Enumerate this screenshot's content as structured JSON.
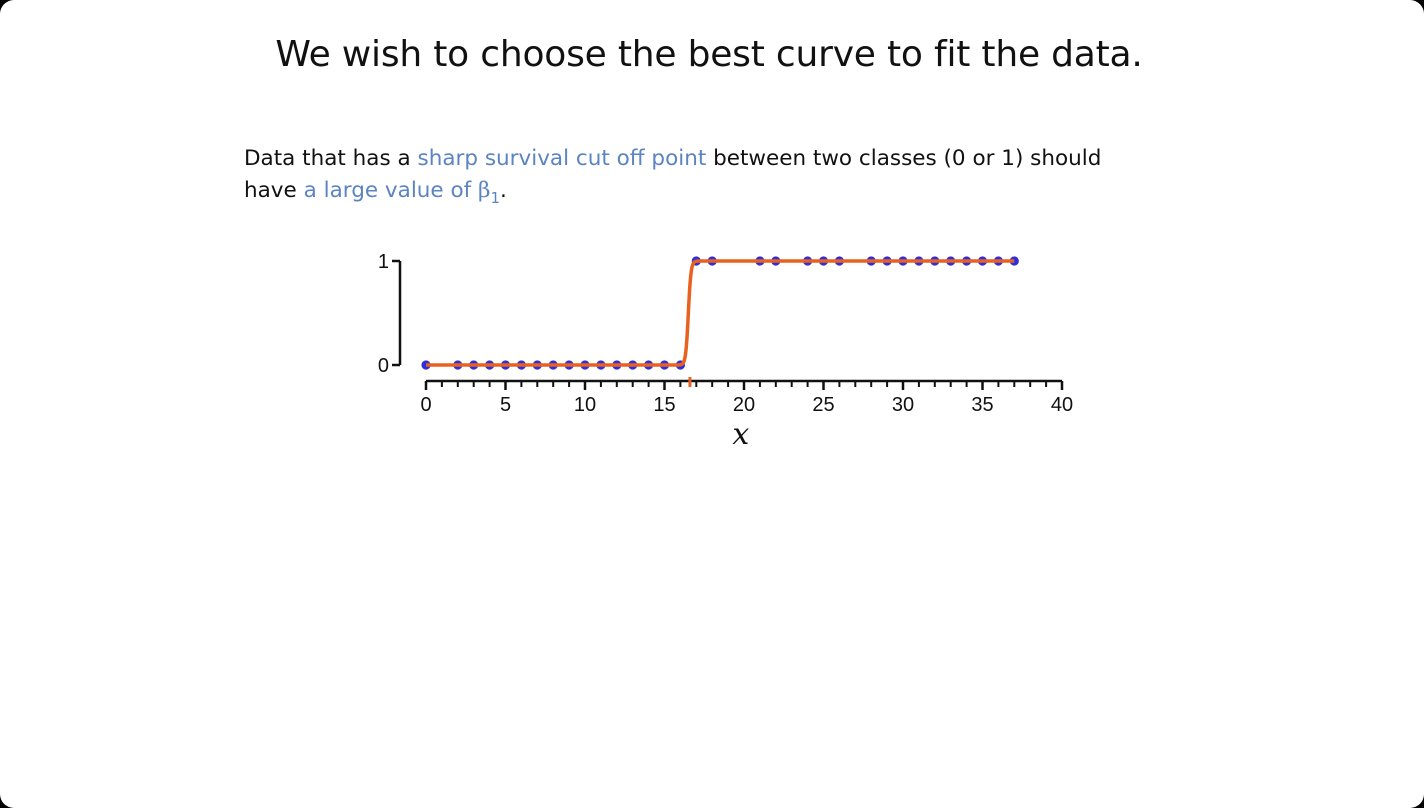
{
  "slide": {
    "title": "We wish to choose the best curve to fit the data.",
    "text_1": "Data that has a ",
    "highlight_1": "sharp survival cut off point",
    "text_2": " between two classes (0 or 1) should have ",
    "highlight_2": "a large value of ",
    "beta_symbol": "β",
    "beta_subscript": "1",
    "text_3": "."
  },
  "colors": {
    "highlight": "#5b84c0",
    "points": "#2f2fd8",
    "curve": "#e8611f",
    "axis": "#111111"
  },
  "chart_data": {
    "type": "scatter",
    "xlabel": "x",
    "ylabel": "",
    "xlim": [
      0,
      40
    ],
    "ylim": [
      0,
      1
    ],
    "x_ticks": [
      "0",
      "5",
      "10",
      "15",
      "20",
      "25",
      "30",
      "35",
      "40"
    ],
    "y_ticks": [
      "0",
      "1"
    ],
    "series": [
      {
        "kind": "points",
        "x": [
          0,
          2,
          3,
          4,
          5,
          6,
          7,
          8,
          9,
          10,
          11,
          12,
          13,
          14,
          15,
          16,
          17,
          18,
          21,
          22,
          24,
          25,
          26,
          28,
          29,
          30,
          31,
          32,
          33,
          34,
          35,
          36,
          37
        ],
        "y": [
          0,
          0,
          0,
          0,
          0,
          0,
          0,
          0,
          0,
          0,
          0,
          0,
          0,
          0,
          0,
          0,
          1,
          1,
          1,
          1,
          1,
          1,
          1,
          1,
          1,
          1,
          1,
          1,
          1,
          1,
          1,
          1,
          1
        ]
      },
      {
        "kind": "logistic_curve",
        "midpoint": 16.5,
        "steepness": 12,
        "x_range": [
          0,
          37
        ]
      }
    ],
    "marker": {
      "x": 16.6
    }
  }
}
